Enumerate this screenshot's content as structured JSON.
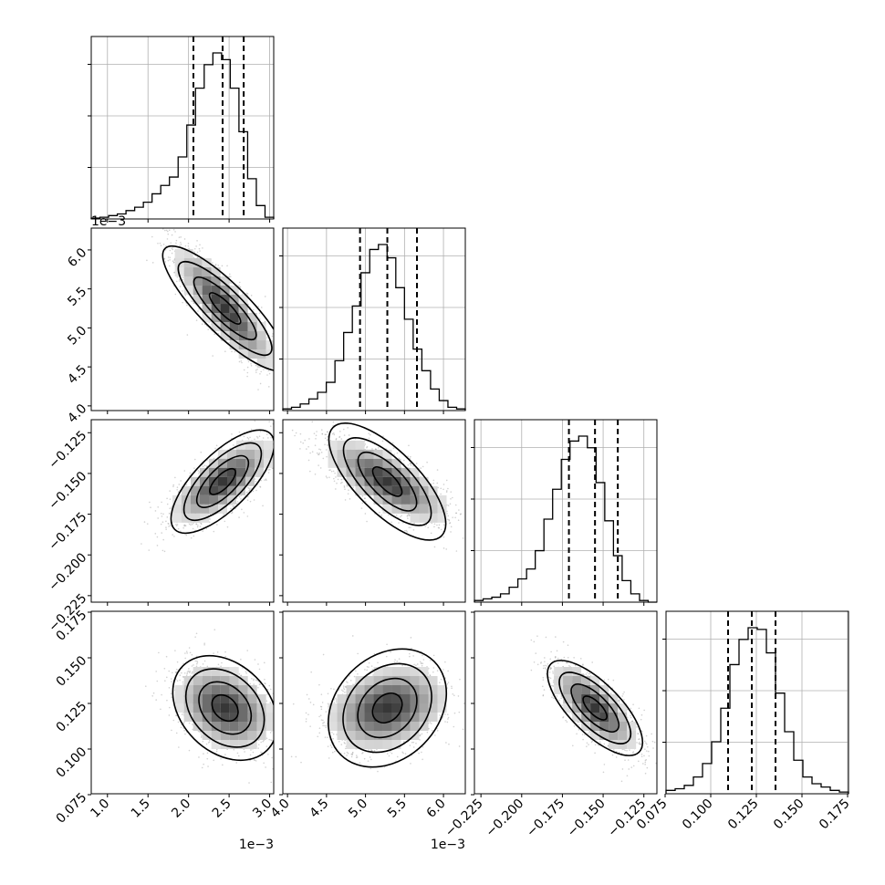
{
  "chart_data": {
    "type": "corner",
    "parameters": [
      {
        "index": 0,
        "range": [
          0.0008,
          0.00305
        ],
        "ticks": [
          0.001,
          0.0015,
          0.002,
          0.0025,
          0.003
        ],
        "tick_labels": [
          "1.0",
          "1.5",
          "2.0",
          "2.5",
          "3.0"
        ],
        "offset_label": "1e−3",
        "quantiles": [
          0.00206,
          0.00242,
          0.00268
        ]
      },
      {
        "index": 1,
        "range": [
          0.00394,
          0.00628
        ],
        "ticks": [
          0.004,
          0.0045,
          0.005,
          0.0055,
          0.006
        ],
        "tick_labels": [
          "4.0",
          "4.5",
          "5.0",
          "5.5",
          "6.0"
        ],
        "offset_label": "1e−3",
        "quantiles": [
          0.00493,
          0.00528,
          0.00566
        ]
      },
      {
        "index": 2,
        "range": [
          -0.229,
          -0.117
        ],
        "ticks": [
          -0.225,
          -0.2,
          -0.175,
          -0.15,
          -0.125
        ],
        "tick_labels": [
          "−0.225",
          "−0.200",
          "−0.175",
          "−0.150",
          "−0.125"
        ],
        "offset_label": "",
        "quantiles": [
          -0.171,
          -0.155,
          -0.141
        ]
      },
      {
        "index": 3,
        "range": [
          0.0755,
          0.1755
        ],
        "ticks": [
          0.075,
          0.1,
          0.125,
          0.15,
          0.175
        ],
        "tick_labels": [
          "0.075",
          "0.100",
          "0.125",
          "0.150",
          "0.175"
        ],
        "offset_label": "",
        "quantiles": [
          0.1095,
          0.1225,
          0.1355
        ]
      }
    ],
    "histograms": [
      {
        "param": 0,
        "counts": [
          0.005,
          0.01,
          0.02,
          0.03,
          0.05,
          0.07,
          0.1,
          0.15,
          0.2,
          0.25,
          0.37,
          0.56,
          0.78,
          0.92,
          0.99,
          0.95,
          0.78,
          0.52,
          0.24,
          0.08,
          0.01
        ]
      },
      {
        "param": 1,
        "counts": [
          0.01,
          0.02,
          0.04,
          0.07,
          0.11,
          0.17,
          0.3,
          0.47,
          0.63,
          0.83,
          0.97,
          1.0,
          0.92,
          0.74,
          0.55,
          0.37,
          0.24,
          0.13,
          0.06,
          0.02,
          0.01
        ]
      },
      {
        "param": 2,
        "counts": [
          0.01,
          0.02,
          0.03,
          0.05,
          0.09,
          0.14,
          0.2,
          0.31,
          0.5,
          0.68,
          0.86,
          0.97,
          1.0,
          0.93,
          0.72,
          0.49,
          0.28,
          0.13,
          0.05,
          0.01,
          0.0
        ]
      },
      {
        "param": 3,
        "counts": [
          0.02,
          0.03,
          0.05,
          0.1,
          0.18,
          0.31,
          0.51,
          0.77,
          0.92,
          0.99,
          0.98,
          0.84,
          0.6,
          0.37,
          0.2,
          0.1,
          0.06,
          0.04,
          0.02,
          0.01
        ]
      }
    ],
    "pairs": [
      {
        "x": 0,
        "y": 1,
        "mean": [
          0.00245,
          0.00525
        ],
        "sd": [
          0.0003,
          0.00038
        ],
        "corr": -0.85
      },
      {
        "x": 0,
        "y": 2,
        "mean": [
          0.00242,
          -0.155
        ],
        "sd": [
          0.0003,
          0.0125
        ],
        "corr": 0.72
      },
      {
        "x": 1,
        "y": 2,
        "mean": [
          0.00528,
          -0.155
        ],
        "sd": [
          0.00038,
          0.0125
        ],
        "corr": -0.72
      },
      {
        "x": 0,
        "y": 3,
        "mean": [
          0.00245,
          0.1225
        ],
        "sd": [
          0.0003,
          0.0115
        ],
        "corr": -0.3
      },
      {
        "x": 1,
        "y": 3,
        "mean": [
          0.00528,
          0.1225
        ],
        "sd": [
          0.00038,
          0.0115
        ],
        "corr": 0.25
      },
      {
        "x": 2,
        "y": 3,
        "mean": [
          -0.155,
          0.1225
        ],
        "sd": [
          0.0125,
          0.0115
        ],
        "corr": -0.72
      }
    ],
    "contour_levels_sigma": [
      0.5,
      1.0,
      1.5,
      2.0
    ],
    "grid": true,
    "quantile_line_style": "dashed"
  }
}
